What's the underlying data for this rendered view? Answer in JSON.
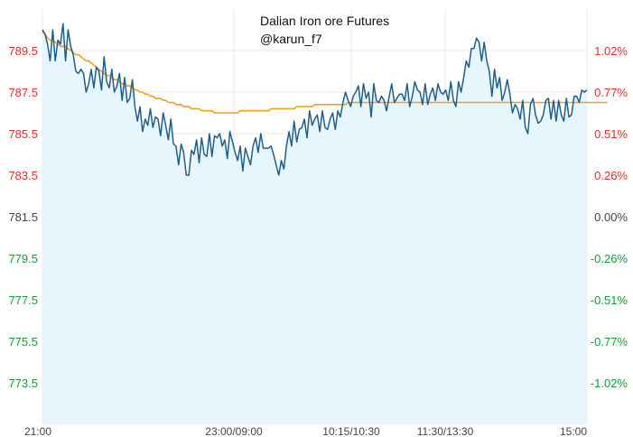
{
  "chart_data": {
    "type": "line",
    "title": "Dalian Iron ore Futures",
    "subtitle": "@karun_f7",
    "xlabel": "",
    "ylabel": "",
    "ylim": [
      771.5,
      791.5
    ],
    "grid": true,
    "base_price": 781.5,
    "left_ticks": [
      "789.5",
      "787.5",
      "785.5",
      "783.5",
      "781.5",
      "779.5",
      "777.5",
      "775.5",
      "773.5"
    ],
    "right_ticks": [
      "1.02%",
      "0.77%",
      "0.51%",
      "0.26%",
      "0.00%",
      "-0.26%",
      "-0.51%",
      "-0.77%",
      "-1.02%"
    ],
    "x_ticks": [
      "21:00",
      "23:00/09:00",
      "10:15/10:30",
      "11:30/13:30",
      "15:00"
    ],
    "colors": {
      "price_line": "#1f5f8b",
      "average_line": "#f0a020",
      "area_fill": "#e6f6fc",
      "up_label": "#e0302a",
      "down_label": "#1a9a3a",
      "neutral_label": "#444444",
      "grid": "#e8e8e8"
    },
    "series": [
      {
        "name": "",
        "role": "price",
        "values": [
          790.5,
          790.3,
          789.8,
          789.0,
          790.5,
          789.0,
          790.0,
          789.8,
          790.8,
          789.0,
          790.5,
          789.7,
          789.3,
          788.5,
          788.4,
          788.6,
          788.4,
          787.5,
          787.9,
          788.6,
          787.7,
          788.7,
          788.5,
          787.6,
          789.2,
          788.0,
          787.7,
          788.6,
          787.5,
          787.8,
          788.4,
          787.1,
          788.2,
          787.0,
          787.2,
          788.1,
          786.8,
          786.1,
          786.8,
          785.6,
          786.2,
          785.9,
          786.7,
          785.8,
          786.3,
          786.2,
          785.4,
          786.5,
          785.9,
          785.2,
          786.2,
          785.0,
          784.9,
          784.0,
          785.0,
          784.6,
          783.5,
          783.5,
          784.7,
          784.5,
          785.2,
          784.1,
          785.3,
          784.5,
          784.4,
          785.5,
          784.4,
          785.4,
          785.3,
          785.5,
          784.9,
          785.2,
          784.3,
          785.6,
          785.1,
          784.6,
          784.2,
          784.9,
          783.7,
          784.8,
          784.4,
          784.0,
          784.9,
          785.3,
          784.6,
          785.5,
          784.8,
          784.8,
          784.8,
          784.9,
          784.5,
          784.0,
          783.5,
          784.2,
          783.8,
          784.9,
          785.6,
          784.9,
          786.1,
          785.1,
          785.7,
          785.8,
          786.2,
          785.3,
          786.6,
          785.9,
          786.2,
          786.4,
          785.6,
          786.6,
          785.8,
          785.7,
          786.2,
          786.5,
          785.7,
          786.6,
          786.3,
          787.0,
          787.5,
          787.1,
          786.8,
          787.3,
          787.5,
          787.8,
          786.8,
          787.9,
          787.2,
          787.5,
          786.3,
          787.9,
          787.1,
          787.0,
          787.3,
          787.1,
          786.6,
          787.3,
          787.9,
          787.0,
          787.2,
          787.4,
          787.4,
          787.1,
          787.9,
          786.8,
          787.3,
          788.0,
          787.6,
          787.5,
          786.9,
          787.9,
          786.9,
          787.4,
          787.7,
          787.1,
          787.9,
          787.5,
          787.4,
          787.6,
          787.1,
          788.0,
          787.1,
          786.8,
          788.0,
          787.5,
          788.2,
          789.0,
          788.7,
          789.6,
          789.6,
          790.1,
          789.9,
          789.0,
          789.9,
          789.0,
          788.5,
          787.3,
          788.6,
          787.7,
          788.2,
          787.1,
          787.5,
          788.1,
          787.4,
          786.5,
          786.9,
          786.7,
          786.2,
          787.1,
          785.8,
          785.5,
          786.9,
          787.2,
          786.4,
          786.0,
          786.1,
          786.4,
          787.1,
          787.2,
          786.2,
          787.1,
          786.1,
          787.1,
          786.4,
          786.1,
          787.2,
          786.3,
          786.4,
          787.3,
          787.3,
          787.0,
          787.6,
          787.5,
          787.6
        ]
      },
      {
        "name": "",
        "role": "average",
        "values": [
          790.4,
          790.3,
          790.1,
          790.0,
          790.0,
          789.9,
          789.8,
          789.7,
          789.7,
          789.7,
          789.6,
          789.5,
          789.4,
          789.3,
          789.3,
          789.2,
          789.1,
          789.0,
          789.0,
          788.9,
          788.8,
          788.7,
          788.6,
          788.5,
          788.4,
          788.3,
          788.3,
          788.2,
          788.1,
          788.1,
          788.0,
          787.9,
          787.9,
          787.8,
          787.8,
          787.7,
          787.6,
          787.6,
          787.5,
          787.5,
          787.4,
          787.4,
          787.3,
          787.3,
          787.2,
          787.2,
          787.2,
          787.1,
          787.1,
          787.0,
          787.0,
          787.0,
          786.9,
          786.9,
          786.9,
          786.8,
          786.8,
          786.8,
          786.7,
          786.7,
          786.7,
          786.7,
          786.6,
          786.6,
          786.6,
          786.6,
          786.6,
          786.5,
          786.5,
          786.5,
          786.5,
          786.5,
          786.5,
          786.5,
          786.5,
          786.5,
          786.5,
          786.6,
          786.6,
          786.6,
          786.6,
          786.6,
          786.6,
          786.6,
          786.6,
          786.6,
          786.6,
          786.6,
          786.6,
          786.7,
          786.7,
          786.7,
          786.7,
          786.7,
          786.7,
          786.7,
          786.7,
          786.7,
          786.7,
          786.8,
          786.8,
          786.8,
          786.8,
          786.8,
          786.8,
          786.8,
          786.9,
          786.9,
          786.9,
          786.9,
          786.9,
          786.9,
          786.9,
          786.9,
          786.9,
          786.9,
          786.9,
          786.9,
          786.9,
          787.0,
          787.0,
          787.0,
          787.0,
          787.0,
          787.0,
          787.0,
          787.0,
          787.0,
          787.0,
          787.0,
          787.0,
          787.0,
          787.0,
          787.0,
          787.0,
          787.0,
          787.0,
          787.0,
          787.0,
          787.0,
          787.0,
          787.0,
          787.0,
          787.0,
          787.0,
          787.0,
          787.0,
          787.0,
          787.0,
          787.0,
          787.0,
          787.0,
          787.0,
          787.0,
          787.0,
          787.0,
          787.0,
          787.0,
          787.0,
          787.0,
          787.0,
          787.0,
          787.0,
          787.0,
          787.0,
          787.0,
          787.0,
          787.0,
          787.0,
          787.0,
          787.0,
          787.0,
          787.0,
          787.0,
          787.0,
          787.0,
          787.0,
          787.0,
          787.0,
          787.0,
          787.0,
          787.0,
          787.0,
          787.0,
          787.0,
          787.0,
          787.0,
          787.0,
          787.0,
          787.0,
          787.0,
          787.0,
          787.0,
          787.0,
          787.0,
          787.0,
          787.0,
          787.0,
          787.0,
          787.0,
          787.0,
          787.0,
          787.0,
          787.0,
          787.0,
          787.0,
          787.0,
          787.0,
          787.0,
          787.0,
          787.0,
          787.0,
          787.0,
          787.0,
          787.0,
          787.0,
          787.0,
          787.0,
          787.0,
          787.0,
          787.0
        ]
      }
    ]
  }
}
